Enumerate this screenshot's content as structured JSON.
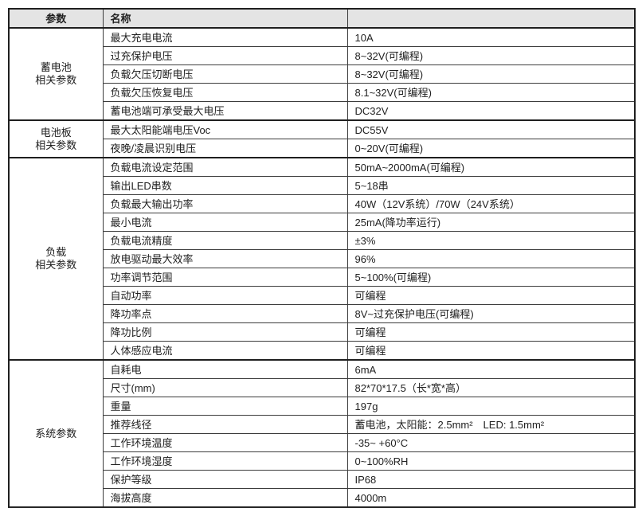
{
  "table": {
    "headers": [
      "参数",
      "名称",
      ""
    ],
    "sections": [
      {
        "category": "蓄电池\n相关参数",
        "rows": [
          {
            "name": "最大充电电流",
            "value": "10A"
          },
          {
            "name": "过充保护电压",
            "value": "8~32V(可编程)"
          },
          {
            "name": "负载欠压切断电压",
            "value": "8~32V(可编程)"
          },
          {
            "name": "负载欠压恢复电压",
            "value": "8.1~32V(可编程)"
          },
          {
            "name": "蓄电池端可承受最大电压",
            "value": "DC32V"
          }
        ]
      },
      {
        "category": "电池板\n相关参数",
        "rows": [
          {
            "name": "最大太阳能端电压Voc",
            "value": "DC55V"
          },
          {
            "name": "夜晚/凌晨识别电压",
            "value": "0~20V(可编程)"
          }
        ]
      },
      {
        "category": "负载\n相关参数",
        "rows": [
          {
            "name": "负载电流设定范围",
            "value": "50mA~2000mA(可编程)"
          },
          {
            "name": "输出LED串数",
            "value": "5~18串"
          },
          {
            "name": "负载最大输出功率",
            "value": "40W（12V系统）/70W（24V系统）"
          },
          {
            "name": "最小电流",
            "value": "25mA(降功率运行)"
          },
          {
            "name": "负载电流精度",
            "value": "±3%"
          },
          {
            "name": "放电驱动最大效率",
            "value": "96%"
          },
          {
            "name": "功率调节范围",
            "value": "5~100%(可编程)"
          },
          {
            "name": "自动功率",
            "value": "可编程"
          },
          {
            "name": "降功率点",
            "value": "8V~过充保护电压(可编程)"
          },
          {
            "name": "降功比例",
            "value": "可编程"
          },
          {
            "name": "人体感应电流",
            "value": "可编程"
          }
        ]
      },
      {
        "category": "系统参数",
        "rows": [
          {
            "name": "自耗电",
            "value": "6mA"
          },
          {
            "name": "尺寸(mm)",
            "value": "82*70*17.5（长*宽*高）"
          },
          {
            "name": "重量",
            "value": "197g"
          },
          {
            "name": "推荐线径",
            "value": "蓄电池，太阳能：2.5mm²　LED: 1.5mm²"
          },
          {
            "name": "工作环境温度",
            "value": "-35~ +60°C"
          },
          {
            "name": "工作环境湿度",
            "value": "0~100%RH"
          },
          {
            "name": "保护等级",
            "value": "IP68"
          },
          {
            "name": "海拔高度",
            "value": "4000m"
          }
        ]
      }
    ]
  }
}
